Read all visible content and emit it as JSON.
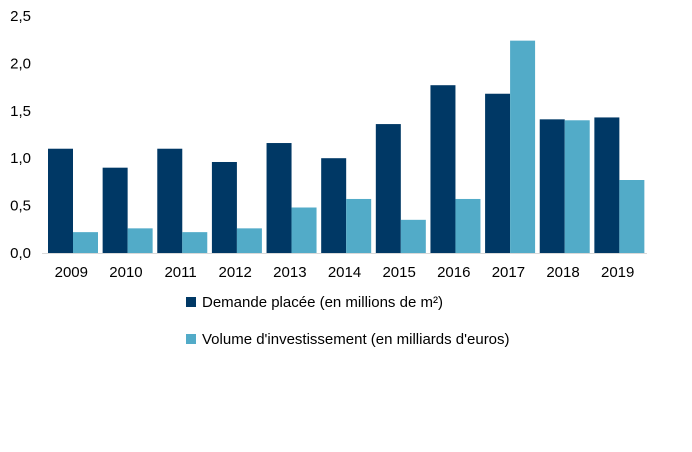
{
  "chart_data": {
    "type": "bar",
    "categories": [
      "2009",
      "2010",
      "2011",
      "2012",
      "2013",
      "2014",
      "2015",
      "2016",
      "2017",
      "2018",
      "2019"
    ],
    "series": [
      {
        "name": "Demande placée (en millions de m²)",
        "color": "#003865",
        "values": [
          1.1,
          0.9,
          1.1,
          0.96,
          1.16,
          1.0,
          1.36,
          1.77,
          1.68,
          1.41,
          1.43
        ]
      },
      {
        "name": "Volume d'investissement (en milliards d'euros)",
        "color": "#52abc8",
        "values": [
          0.22,
          0.26,
          0.22,
          0.26,
          0.48,
          0.57,
          0.35,
          0.57,
          2.24,
          1.4,
          0.77
        ]
      }
    ],
    "ylim": [
      0,
      2.5
    ],
    "yticks": [
      "0,0",
      "0,5",
      "1,0",
      "1,5",
      "2,0",
      "2,5"
    ],
    "legend_position": "bottom",
    "grid": false
  }
}
